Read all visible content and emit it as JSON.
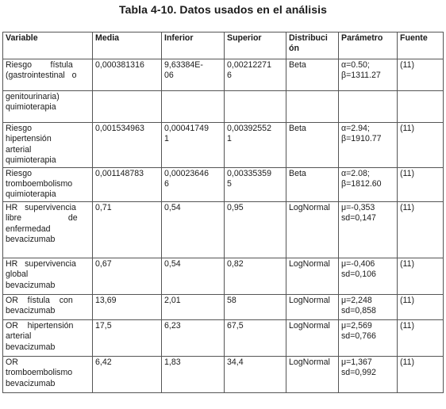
{
  "caption": "Tabla 4-10. Datos usados en el análisis",
  "headers": {
    "variable": "Variable",
    "media": "Media",
    "inferior": "Inferior",
    "superior": "Superior",
    "distribucion_l1": "Distribuci",
    "distribucion_l2": "ón",
    "parametro": "Parámetro",
    "fuente": "Fuente"
  },
  "rows": [
    {
      "variable": [
        "Riesgo        fístula",
        "(gastrointestinal   o"
      ],
      "media": "0,000381316",
      "inferior": [
        "9,63384E-",
        "06"
      ],
      "superior": [
        "0,00212271",
        "6"
      ],
      "distribucion": "Beta",
      "parametro": [
        "α=0.50;",
        "β=1311.27"
      ],
      "fuente": "(11)"
    },
    {
      "variable": [
        "genitourinaria)",
        "quimioterapia"
      ],
      "media": "",
      "inferior": [
        "",
        ""
      ],
      "superior": [
        "",
        ""
      ],
      "distribucion": "",
      "parametro": [
        "",
        ""
      ],
      "fuente": ""
    },
    {
      "variable": [
        "Riesgo",
        "hipertensión",
        "arterial",
        "quimioterapia"
      ],
      "media": "0,001534963",
      "inferior": [
        "0,00041749",
        "1"
      ],
      "superior": [
        "0,00392552",
        "1"
      ],
      "distribucion": "Beta",
      "parametro": [
        "α=2.94;",
        "β=1910.77"
      ],
      "fuente": "(11)"
    },
    {
      "variable": [
        "Riesgo",
        "tromboembolismo",
        "quimioterapia"
      ],
      "media": "0,001148783",
      "inferior": [
        "0,00023646",
        "6"
      ],
      "superior": [
        "0,00335359",
        "5"
      ],
      "distribucion": "Beta",
      "parametro": [
        "α=2.08;",
        "β=1812.60"
      ],
      "fuente": "(11)"
    },
    {
      "variable": [
        "HR   supervivencia",
        "libre                    de",
        "enfermedad",
        "bevacizumab"
      ],
      "media": "0,71",
      "inferior": [
        "0,54",
        ""
      ],
      "superior": [
        "0,95",
        ""
      ],
      "distribucion": "LogNormal",
      "parametro": [
        "μ=-0,353",
        "sd=0,147"
      ],
      "fuente": "(11)"
    },
    {
      "variable": [
        "HR   supervivencia",
        "global",
        "bevacizumab"
      ],
      "media": "0,67",
      "inferior": [
        "0,54",
        ""
      ],
      "superior": [
        "0,82",
        ""
      ],
      "distribucion": "LogNormal",
      "parametro": [
        "μ=-0,406",
        "sd=0,106"
      ],
      "fuente": "(11)"
    },
    {
      "variable": [
        "OR    fístula    con",
        "bevacizumab"
      ],
      "media": "13,69",
      "inferior": [
        "2,01",
        ""
      ],
      "superior": [
        "58",
        ""
      ],
      "distribucion": "LogNormal",
      "parametro": [
        "μ=2,248",
        "sd=0,858"
      ],
      "fuente": "(11)"
    },
    {
      "variable": [
        "OR    hipertensión",
        "arterial",
        "bevacizumab"
      ],
      "media": "17,5",
      "inferior": [
        "6,23",
        ""
      ],
      "superior": [
        "67,5",
        ""
      ],
      "distribucion": "LogNormal",
      "parametro": [
        "μ=2,569",
        "sd=0,766"
      ],
      "fuente": "(11)"
    },
    {
      "variable": [
        "OR",
        "tromboembolismo",
        "bevacizumab"
      ],
      "media": "6,42",
      "inferior": [
        "1,83",
        ""
      ],
      "superior": [
        "34,4",
        ""
      ],
      "distribucion": "LogNormal",
      "parametro": [
        "μ=1,367",
        "sd=0,992"
      ],
      "fuente": "(11)"
    }
  ]
}
